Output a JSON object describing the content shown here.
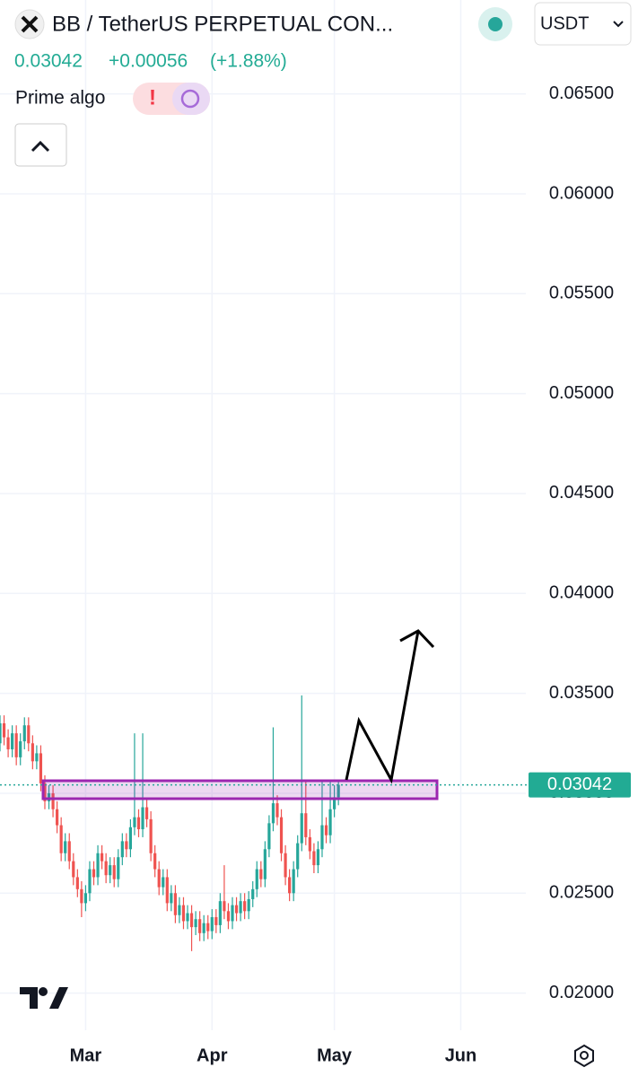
{
  "header": {
    "symbol": "BB / TetherUS PERPETUAL CON...",
    "price": "0.03042",
    "change": "+0.00056",
    "change_pct": "(+1.88%)",
    "indicator": "Prime algo",
    "currency": "USDT"
  },
  "chart_data": {
    "type": "candlestick",
    "up_color": "#26a69a",
    "down_color": "#ef5350",
    "grid": true,
    "last_price": 0.03042,
    "xlim": [
      0,
      125
    ],
    "ylim": [
      0.0185,
      0.0697
    ],
    "xticks": [
      {
        "value": 21,
        "label": "Mar"
      },
      {
        "value": 52,
        "label": "Apr"
      },
      {
        "value": 82,
        "label": "May"
      },
      {
        "value": 113,
        "label": "Jun"
      }
    ],
    "yticks": [
      {
        "value": 0.02,
        "label": "0.02000"
      },
      {
        "value": 0.025,
        "label": "0.02500"
      },
      {
        "value": 0.03,
        "label": "0.03000"
      },
      {
        "value": 0.035,
        "label": "0.03500"
      },
      {
        "value": 0.04,
        "label": "0.04000"
      },
      {
        "value": 0.045,
        "label": "0.04500"
      },
      {
        "value": 0.05,
        "label": "0.05000"
      },
      {
        "value": 0.055,
        "label": "0.05500"
      },
      {
        "value": 0.06,
        "label": "0.06000"
      },
      {
        "value": 0.065,
        "label": "0.06500"
      }
    ],
    "open": [
      0.0325,
      0.0335,
      0.0328,
      0.0322,
      0.033,
      0.0318,
      0.0326,
      0.0334,
      0.0325,
      0.0316,
      0.032,
      0.0305,
      0.0296,
      0.03,
      0.0292,
      0.0284,
      0.027,
      0.0276,
      0.0266,
      0.0258,
      0.0252,
      0.0245,
      0.025,
      0.0262,
      0.0258,
      0.027,
      0.0266,
      0.0259,
      0.0264,
      0.0257,
      0.0268,
      0.0276,
      0.0272,
      0.0283,
      0.0288,
      0.0282,
      0.0293,
      0.0287,
      0.027,
      0.0262,
      0.0253,
      0.0258,
      0.0245,
      0.025,
      0.0239,
      0.0244,
      0.0236,
      0.024,
      0.0233,
      0.0237,
      0.023,
      0.0235,
      0.0231,
      0.0238,
      0.0234,
      0.0246,
      0.0241,
      0.0236,
      0.0244,
      0.024,
      0.0246,
      0.0241,
      0.0247,
      0.0252,
      0.0262,
      0.0257,
      0.0272,
      0.0285,
      0.0295,
      0.0288,
      0.027,
      0.0258,
      0.025,
      0.0262,
      0.0275,
      0.029,
      0.0278,
      0.0271,
      0.0264,
      0.0272,
      0.0284,
      0.0279,
      0.0292,
      0.0298
    ],
    "high": [
      0.0339,
      0.0339,
      0.0332,
      0.0334,
      0.0334,
      0.033,
      0.0338,
      0.0338,
      0.0329,
      0.0324,
      0.0324,
      0.0309,
      0.0304,
      0.0304,
      0.0296,
      0.0288,
      0.028,
      0.028,
      0.027,
      0.0262,
      0.0256,
      0.0254,
      0.0266,
      0.0266,
      0.0274,
      0.0274,
      0.027,
      0.0268,
      0.0268,
      0.0272,
      0.028,
      0.028,
      0.0287,
      0.033,
      0.0292,
      0.033,
      0.0297,
      0.0291,
      0.0274,
      0.0266,
      0.0262,
      0.0262,
      0.0254,
      0.0254,
      0.0248,
      0.0248,
      0.0244,
      0.0244,
      0.0241,
      0.0241,
      0.0239,
      0.0239,
      0.0242,
      0.0242,
      0.025,
      0.0264,
      0.0245,
      0.0248,
      0.0248,
      0.025,
      0.025,
      0.0251,
      0.0256,
      0.0266,
      0.0266,
      0.0276,
      0.0289,
      0.0333,
      0.0299,
      0.0292,
      0.0274,
      0.0262,
      0.0266,
      0.0279,
      0.0349,
      0.0306,
      0.0282,
      0.0275,
      0.0276,
      0.0306,
      0.0288,
      0.0306,
      0.0304,
      0.0306
    ],
    "low": [
      0.0321,
      0.0324,
      0.0318,
      0.0318,
      0.0314,
      0.0314,
      0.0322,
      0.0321,
      0.0312,
      0.0312,
      0.0301,
      0.0292,
      0.0292,
      0.0288,
      0.028,
      0.0266,
      0.0266,
      0.0262,
      0.0254,
      0.0248,
      0.0238,
      0.0241,
      0.0246,
      0.0254,
      0.0254,
      0.0262,
      0.0255,
      0.0255,
      0.0253,
      0.0253,
      0.0264,
      0.0268,
      0.0268,
      0.0279,
      0.0278,
      0.0278,
      0.0283,
      0.0266,
      0.0258,
      0.0249,
      0.0249,
      0.0241,
      0.0241,
      0.0235,
      0.0235,
      0.0232,
      0.0232,
      0.0221,
      0.0229,
      0.0226,
      0.0226,
      0.0227,
      0.0227,
      0.023,
      0.023,
      0.0237,
      0.0232,
      0.0232,
      0.0236,
      0.0236,
      0.0237,
      0.0237,
      0.0243,
      0.0248,
      0.0253,
      0.0253,
      0.0268,
      0.0281,
      0.0284,
      0.0266,
      0.0254,
      0.0246,
      0.0246,
      0.0258,
      0.0271,
      0.0274,
      0.0267,
      0.026,
      0.026,
      0.0268,
      0.0275,
      0.0275,
      0.0288,
      0.0294
    ],
    "close": [
      0.0335,
      0.0328,
      0.0322,
      0.033,
      0.0318,
      0.0326,
      0.0334,
      0.0325,
      0.0316,
      0.032,
      0.0305,
      0.0296,
      0.03,
      0.0292,
      0.0284,
      0.027,
      0.0276,
      0.0266,
      0.0258,
      0.0252,
      0.0245,
      0.025,
      0.0262,
      0.0258,
      0.027,
      0.0266,
      0.0259,
      0.0264,
      0.0257,
      0.0268,
      0.0276,
      0.0272,
      0.0283,
      0.0288,
      0.0282,
      0.0293,
      0.0287,
      0.027,
      0.0262,
      0.0253,
      0.0258,
      0.0245,
      0.025,
      0.0239,
      0.0244,
      0.0236,
      0.024,
      0.0233,
      0.0237,
      0.023,
      0.0235,
      0.0231,
      0.0238,
      0.0234,
      0.0246,
      0.0241,
      0.0236,
      0.0244,
      0.024,
      0.0246,
      0.0241,
      0.0247,
      0.0252,
      0.0262,
      0.0257,
      0.0272,
      0.0285,
      0.0295,
      0.0288,
      0.027,
      0.0258,
      0.025,
      0.0262,
      0.0275,
      0.029,
      0.0278,
      0.0271,
      0.0264,
      0.0272,
      0.0284,
      0.0279,
      0.0292,
      0.0298,
      0.03042
    ]
  }
}
